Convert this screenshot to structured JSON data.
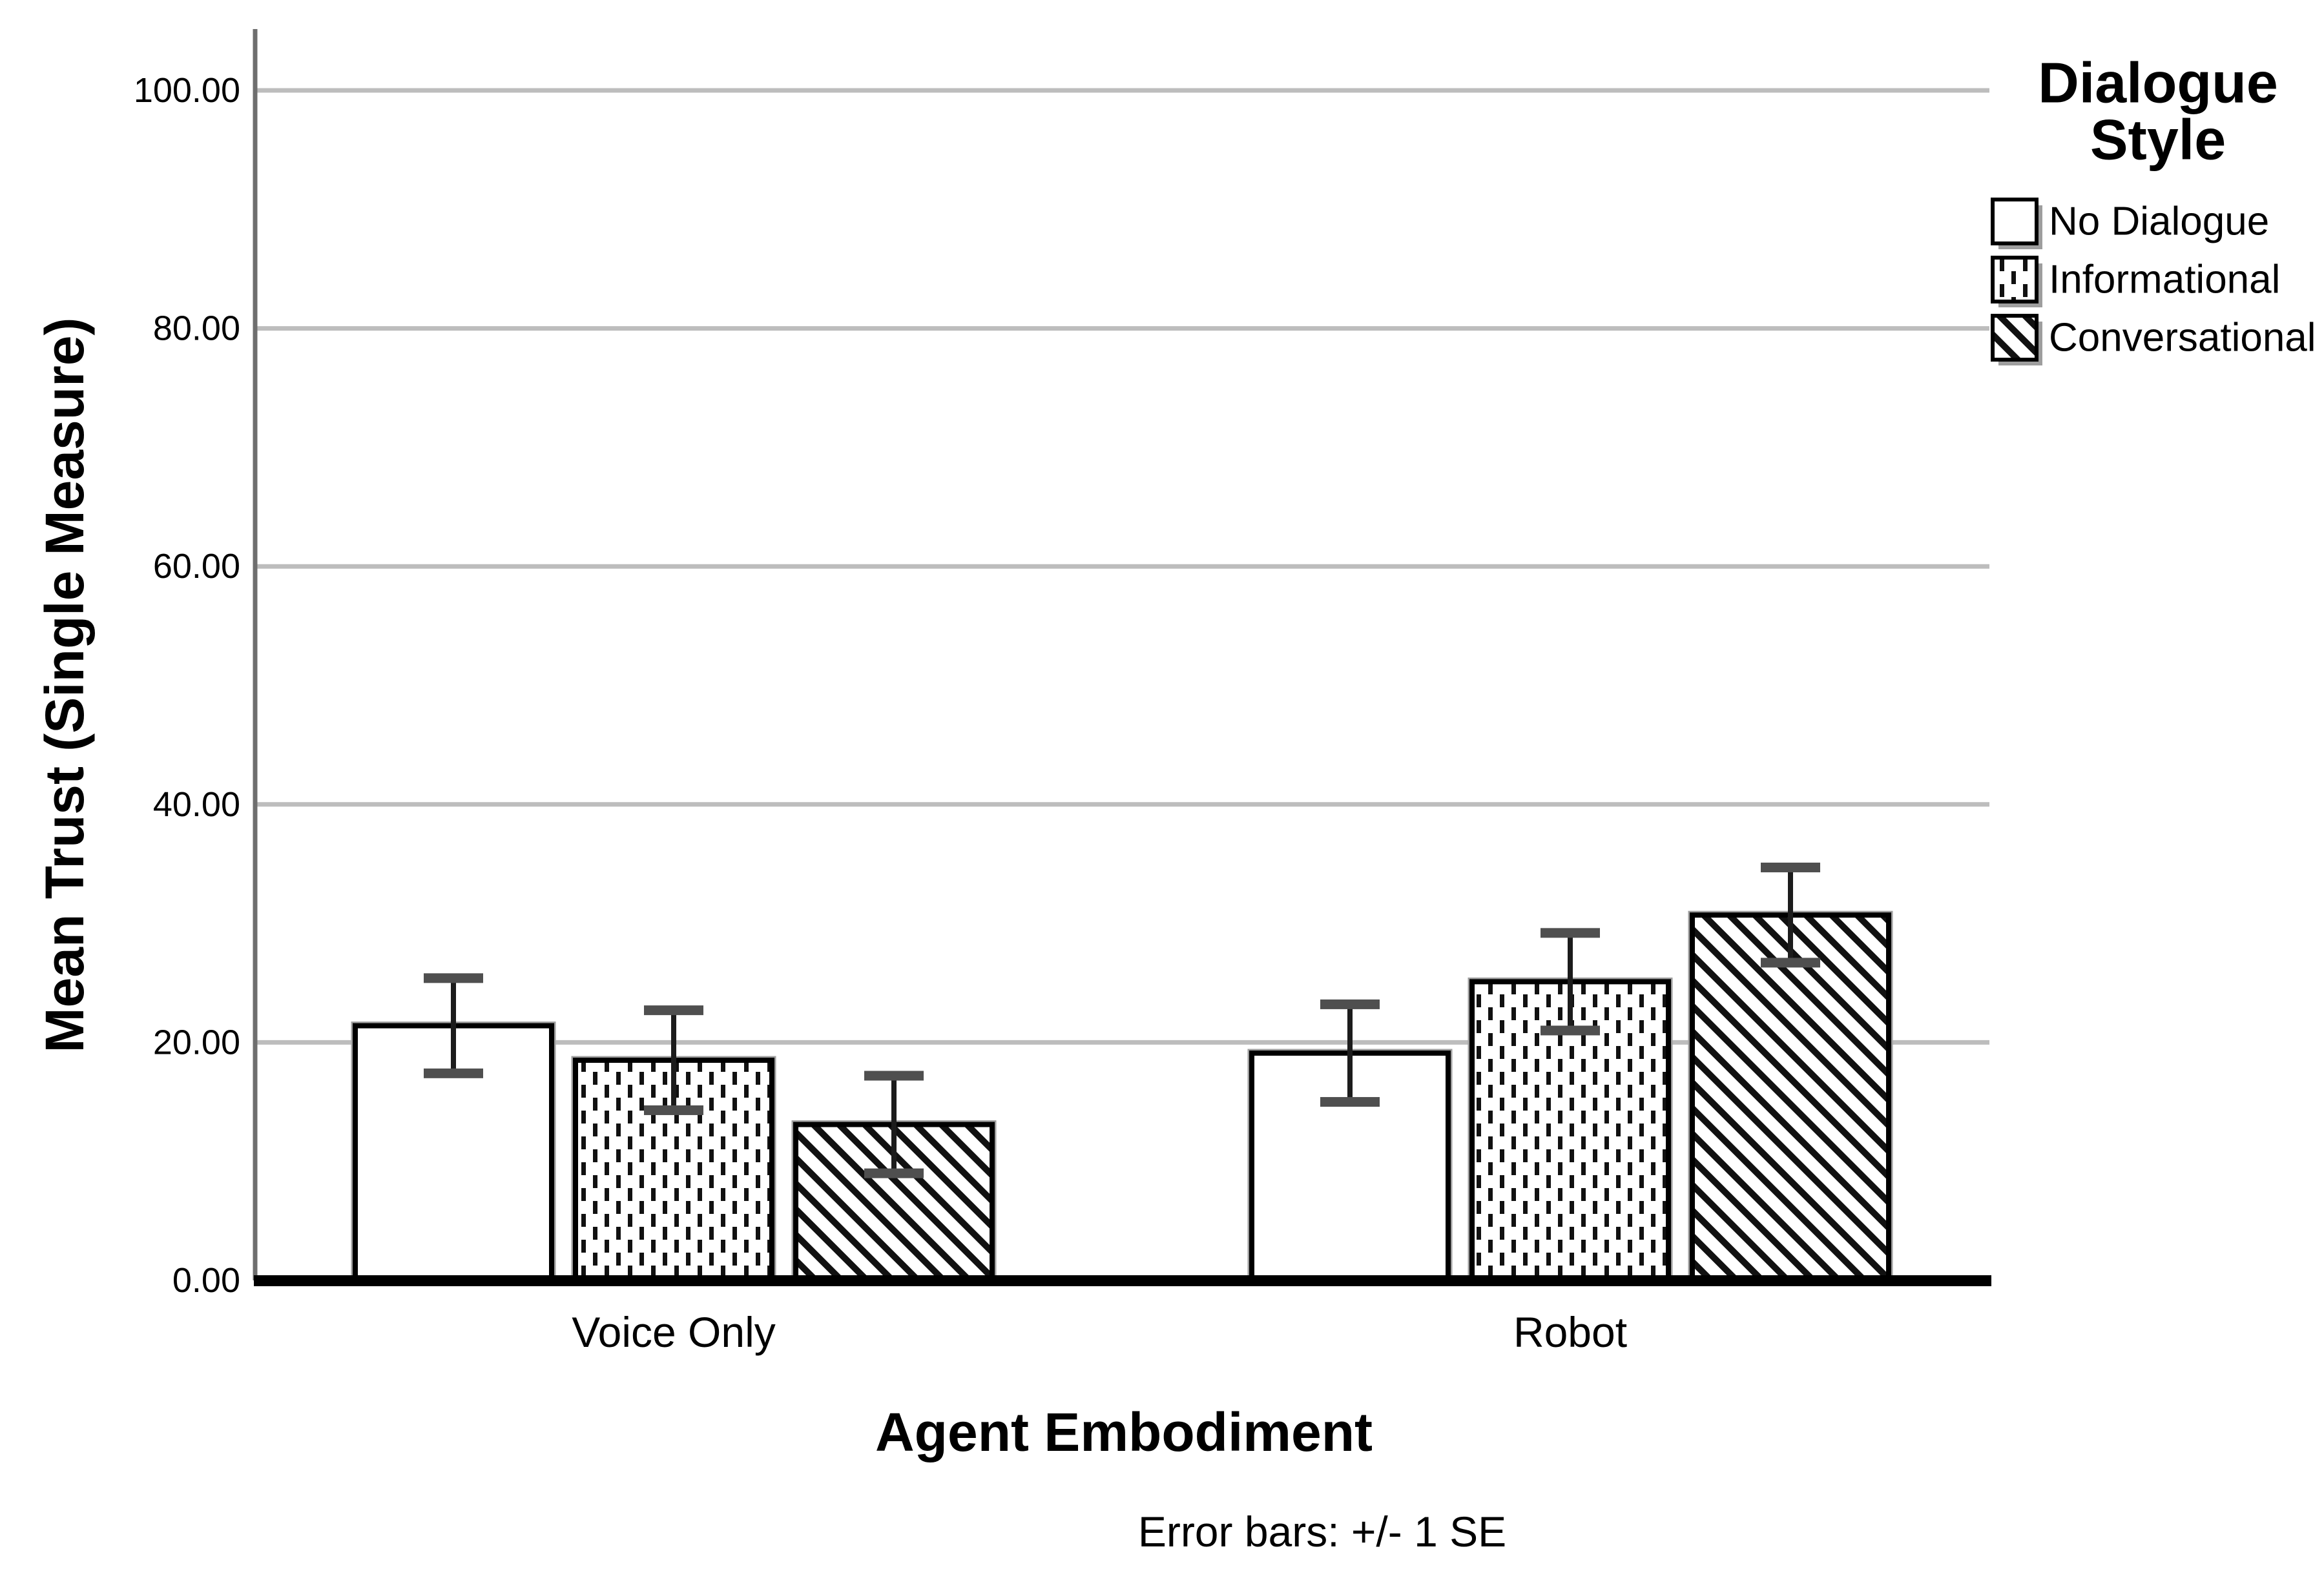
{
  "figure": {
    "background": "#ffffff"
  },
  "chart_data": {
    "type": "bar",
    "title": "",
    "xlabel": "Agent Embodiment",
    "ylabel": "Mean Trust (Single Measure)",
    "categories": [
      "Voice Only",
      "Robot"
    ],
    "series": [
      {
        "name": "No Dialogue",
        "pattern": "solid-white",
        "values": [
          21.4,
          19.1
        ],
        "se": [
          4.0,
          4.1
        ]
      },
      {
        "name": "Informational",
        "pattern": "dotted",
        "values": [
          18.5,
          25.1
        ],
        "se": [
          4.2,
          4.1
        ]
      },
      {
        "name": "Conversational",
        "pattern": "diagonal-down",
        "values": [
          13.1,
          30.7
        ],
        "se": [
          4.1,
          4.0
        ]
      }
    ],
    "ylim": [
      0,
      105
    ],
    "yticks": [
      "0.00",
      "20.00",
      "40.00",
      "60.00",
      "80.00",
      "100.00"
    ],
    "ytick_values": [
      0,
      20,
      40,
      60,
      80,
      100
    ],
    "grid": true,
    "legend_position": "top-right",
    "error_note": "Error bars: +/- 1 SE"
  },
  "legend": {
    "title": "Dialogue Style",
    "title_lines": [
      "Dialogue",
      "Style"
    ],
    "items": [
      "No Dialogue",
      "Informational",
      "Conversational"
    ]
  },
  "colors": {
    "bar_fill": "#ffffff",
    "bar_border": "#000000",
    "bar_halo": "#9e9e9e",
    "pattern_ink": "#111111",
    "gridline": "#bdbdbd",
    "axis_line": "#6e6e6e",
    "baseline": "#000000",
    "error_line": "#1c1c1c",
    "error_cap": "#4f4f4f",
    "text": "#000000"
  }
}
